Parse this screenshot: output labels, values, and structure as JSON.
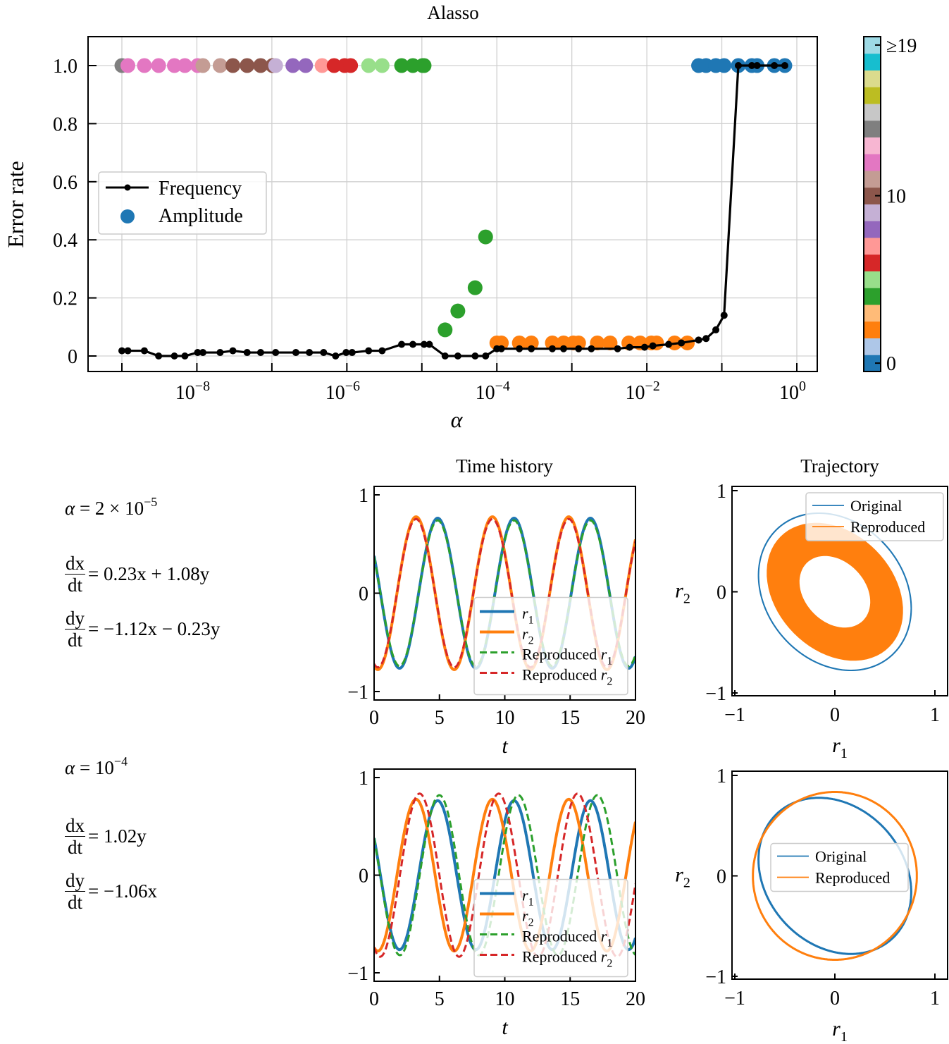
{
  "chart_data": [
    {
      "id": "error-rate",
      "type": "line+scatter",
      "title": "Alasso",
      "xlabel": "α",
      "ylabel": "Error rate",
      "xscale": "log",
      "xlim_log10": [
        -9.45,
        0.3
      ],
      "ylim": [
        -0.055,
        1.09
      ],
      "xticks": [
        {
          "exp": -8,
          "label": "10",
          "sup": "−8"
        },
        {
          "exp": -6,
          "label": "10",
          "sup": "−6"
        },
        {
          "exp": -4,
          "label": "10",
          "sup": "−4"
        },
        {
          "exp": -2,
          "label": "10",
          "sup": "−2"
        },
        {
          "exp": 0,
          "label": "10",
          "sup": "0"
        }
      ],
      "xgrid_decades": [
        -9,
        -8,
        -7,
        -6,
        -5,
        -4,
        -3,
        -2,
        -1,
        0
      ],
      "yticks": [
        0,
        0.2,
        0.4,
        0.6,
        0.8,
        1.0
      ],
      "ytick_labels": [
        "0",
        "0.2",
        "0.4",
        "0.6",
        "0.8",
        "1.0"
      ],
      "grid": true,
      "legend": {
        "placement": "center-left",
        "entries": [
          "Frequency",
          "Amplitude"
        ]
      },
      "frequency": {
        "color": "#000000",
        "log10_alpha": [
          -9.0,
          -8.92,
          -8.7,
          -8.51,
          -8.3,
          -8.16,
          -7.99,
          -7.92,
          -7.69,
          -7.52,
          -7.33,
          -7.15,
          -6.95,
          -6.68,
          -6.5,
          -6.31,
          -6.15,
          -6.01,
          -5.93,
          -5.71,
          -5.53,
          -5.27,
          -5.12,
          -4.97,
          -4.9,
          -4.69,
          -4.52,
          -4.29,
          -4.15,
          -4.0,
          -3.94,
          -3.7,
          -3.54,
          -3.26,
          -3.11,
          -2.91,
          -2.74,
          -2.39,
          -2.23,
          -2.03,
          -1.92,
          -1.71,
          -1.54,
          -1.31,
          -1.21,
          -1.08,
          -0.97,
          -0.78,
          -0.6,
          -0.53,
          -0.3,
          -0.16
        ],
        "values": [
          0.018,
          0.018,
          0.018,
          0.0,
          0.0,
          0.0,
          0.012,
          0.012,
          0.012,
          0.018,
          0.012,
          0.012,
          0.012,
          0.012,
          0.012,
          0.012,
          0.0,
          0.012,
          0.012,
          0.018,
          0.018,
          0.04,
          0.04,
          0.04,
          0.04,
          0.0,
          0.0,
          0.0,
          0.0,
          0.025,
          0.025,
          0.025,
          0.025,
          0.025,
          0.025,
          0.025,
          0.025,
          0.025,
          0.03,
          0.03,
          0.035,
          0.04,
          0.045,
          0.055,
          0.06,
          0.09,
          0.14,
          1.0,
          1.0,
          1.0,
          1.0,
          1.0
        ]
      },
      "amplitude": {
        "colorbar": {
          "colormap": "tab20",
          "colors": [
            "#1f77b4",
            "#aec7e8",
            "#ff7f0e",
            "#ffbb78",
            "#2ca02c",
            "#98df8a",
            "#d62728",
            "#ff9896",
            "#9467bd",
            "#c5b0d5",
            "#8c564b",
            "#c49c94",
            "#e377c2",
            "#f7b6d2",
            "#7f7f7f",
            "#c7c7c7",
            "#bcbd22",
            "#dbdb8d",
            "#17becf",
            "#9edae5"
          ],
          "ticks": [
            {
              "value": 0,
              "label": "0"
            },
            {
              "value": 10,
              "label": "10"
            },
            {
              "value": 19,
              "label": "≥19"
            }
          ]
        },
        "points": [
          {
            "log10_alpha": -9.0,
            "value": 1.0,
            "level": 14
          },
          {
            "log10_alpha": -8.92,
            "value": 1.0,
            "level": 12
          },
          {
            "log10_alpha": -8.7,
            "value": 1.0,
            "level": 12
          },
          {
            "log10_alpha": -8.51,
            "value": 1.0,
            "level": 12
          },
          {
            "log10_alpha": -8.3,
            "value": 1.0,
            "level": 12
          },
          {
            "log10_alpha": -8.16,
            "value": 1.0,
            "level": 12
          },
          {
            "log10_alpha": -7.99,
            "value": 1.0,
            "level": 12
          },
          {
            "log10_alpha": -7.92,
            "value": 1.0,
            "level": 11
          },
          {
            "log10_alpha": -7.69,
            "value": 1.0,
            "level": 11
          },
          {
            "log10_alpha": -7.52,
            "value": 1.0,
            "level": 10
          },
          {
            "log10_alpha": -7.33,
            "value": 1.0,
            "level": 10
          },
          {
            "log10_alpha": -7.15,
            "value": 1.0,
            "level": 10
          },
          {
            "log10_alpha": -6.99,
            "value": 1.0,
            "level": 10
          },
          {
            "log10_alpha": -6.95,
            "value": 1.0,
            "level": 9
          },
          {
            "log10_alpha": -6.72,
            "value": 1.0,
            "level": 8
          },
          {
            "log10_alpha": -6.55,
            "value": 1.0,
            "level": 8
          },
          {
            "log10_alpha": -6.33,
            "value": 1.0,
            "level": 7
          },
          {
            "log10_alpha": -6.17,
            "value": 1.0,
            "level": 6
          },
          {
            "log10_alpha": -6.03,
            "value": 1.0,
            "level": 6
          },
          {
            "log10_alpha": -5.95,
            "value": 1.0,
            "level": 6
          },
          {
            "log10_alpha": -5.71,
            "value": 1.0,
            "level": 5
          },
          {
            "log10_alpha": -5.53,
            "value": 1.0,
            "level": 5
          },
          {
            "log10_alpha": -5.27,
            "value": 1.0,
            "level": 4
          },
          {
            "log10_alpha": -5.12,
            "value": 1.0,
            "level": 4
          },
          {
            "log10_alpha": -4.99,
            "value": 1.0,
            "level": 4
          },
          {
            "log10_alpha": -4.97,
            "value": 1.0,
            "level": 4
          },
          {
            "log10_alpha": -4.69,
            "value": 0.09,
            "level": 4
          },
          {
            "log10_alpha": -4.52,
            "value": 0.155,
            "level": 4
          },
          {
            "log10_alpha": -4.29,
            "value": 0.235,
            "level": 4
          },
          {
            "log10_alpha": -4.15,
            "value": 0.41,
            "level": 4
          },
          {
            "log10_alpha": -4.0,
            "value": 0.045,
            "level": 2
          },
          {
            "log10_alpha": -3.94,
            "value": 0.045,
            "level": 2
          },
          {
            "log10_alpha": -3.7,
            "value": 0.045,
            "level": 2
          },
          {
            "log10_alpha": -3.54,
            "value": 0.045,
            "level": 2
          },
          {
            "log10_alpha": -3.26,
            "value": 0.045,
            "level": 2
          },
          {
            "log10_alpha": -3.11,
            "value": 0.045,
            "level": 2
          },
          {
            "log10_alpha": -2.98,
            "value": 0.045,
            "level": 2
          },
          {
            "log10_alpha": -2.91,
            "value": 0.045,
            "level": 2
          },
          {
            "log10_alpha": -2.66,
            "value": 0.045,
            "level": 2
          },
          {
            "log10_alpha": -2.49,
            "value": 0.045,
            "level": 2
          },
          {
            "log10_alpha": -2.24,
            "value": 0.045,
            "level": 2
          },
          {
            "log10_alpha": -2.09,
            "value": 0.045,
            "level": 2
          },
          {
            "log10_alpha": -1.94,
            "value": 0.045,
            "level": 2
          },
          {
            "log10_alpha": -1.87,
            "value": 0.045,
            "level": 2
          },
          {
            "log10_alpha": -1.63,
            "value": 0.045,
            "level": 2
          },
          {
            "log10_alpha": -1.46,
            "value": 0.045,
            "level": 2
          },
          {
            "log10_alpha": -1.31,
            "value": 1.0,
            "level": 0
          },
          {
            "log10_alpha": -1.21,
            "value": 1.0,
            "level": 0
          },
          {
            "log10_alpha": -1.08,
            "value": 1.0,
            "level": 0
          },
          {
            "log10_alpha": -0.97,
            "value": 1.0,
            "level": 0
          },
          {
            "log10_alpha": -0.78,
            "value": 1.0,
            "level": 0
          },
          {
            "log10_alpha": -0.6,
            "value": 1.0,
            "level": 0
          },
          {
            "log10_alpha": -0.53,
            "value": 1.0,
            "level": 0
          },
          {
            "log10_alpha": -0.3,
            "value": 1.0,
            "level": 0
          },
          {
            "log10_alpha": -0.16,
            "value": 1.0,
            "level": 0
          }
        ]
      }
    },
    {
      "id": "time-history-1",
      "type": "line",
      "title": "Time history",
      "xlabel": "t",
      "xlim": [
        0,
        20
      ],
      "ylim": [
        -1,
        1
      ],
      "xticks": [
        0,
        5,
        10,
        15,
        20
      ],
      "yticks": [
        -1,
        0,
        1
      ],
      "ytick_labels": [
        "−1",
        "0",
        "1"
      ],
      "legend": {
        "placement": "lower-right",
        "entries": [
          "r1",
          "r2",
          "Reproduced r1",
          "Reproduced r2"
        ]
      },
      "system_original": {
        "a": 0.23,
        "b": 1.08,
        "c": -1.12,
        "d": -0.23,
        "x0": 0.38,
        "y0": -0.74
      },
      "system_reproduced": {
        "a": 0.23,
        "b": 1.08,
        "c": -1.12,
        "d": -0.23,
        "x0": 0.38,
        "y0": -0.74,
        "amp_scale": 0.97
      }
    },
    {
      "id": "trajectory-1",
      "type": "line",
      "title": "Trajectory",
      "xlabel": "r1",
      "ylabel": "r2",
      "xlim": [
        -1,
        1
      ],
      "ylim": [
        -1,
        1
      ],
      "xticks": [
        -1,
        0,
        1
      ],
      "yticks": [
        -1,
        0,
        1
      ],
      "legend": {
        "placement": "upper-right",
        "entries": [
          "Original",
          "Reproduced"
        ]
      },
      "original": {
        "rx": 0.8,
        "ry": 0.6,
        "rotation_deg": -45,
        "cx": -0.02,
        "cy": 0.0
      },
      "reproduced_band": {
        "outer_rx": 0.77,
        "outer_ry": 0.58,
        "inner_rx": 0.4,
        "inner_ry": 0.3,
        "rotation_deg": -45
      }
    },
    {
      "id": "time-history-2",
      "type": "line",
      "xlabel": "t",
      "xlim": [
        0,
        20
      ],
      "ylim": [
        -1,
        1
      ],
      "xticks": [
        0,
        5,
        10,
        15,
        20
      ],
      "yticks": [
        -1,
        0,
        1
      ],
      "ytick_labels": [
        "−1",
        "0",
        "1"
      ],
      "legend": {
        "placement": "lower-right",
        "entries": [
          "r1",
          "r2",
          "Reproduced r1",
          "Reproduced r2"
        ]
      },
      "system_original": {
        "a": 0.23,
        "b": 1.08,
        "c": -1.12,
        "d": -0.23,
        "x0": 0.38,
        "y0": -0.74
      },
      "system_reproduced": {
        "a": 0.0,
        "b": 1.02,
        "c": -1.06,
        "d": 0.0,
        "x0": 0.38,
        "y0": -0.74
      }
    },
    {
      "id": "trajectory-2",
      "type": "line",
      "xlabel": "r1",
      "ylabel": "r2",
      "xlim": [
        -1,
        1
      ],
      "ylim": [
        -1,
        1
      ],
      "xticks": [
        -1,
        0,
        1
      ],
      "yticks": [
        -1,
        0,
        1
      ],
      "legend": {
        "placement": "center",
        "entries": [
          "Original",
          "Reproduced"
        ]
      }
    }
  ],
  "equations": [
    {
      "alpha_label": "α",
      "alpha_eq": "= 2 × 10",
      "alpha_sup": "−5",
      "dx_rhs": "= 0.23x + 1.08y",
      "dy_rhs": "= −1.12x − 0.23y"
    },
    {
      "alpha_label": "α",
      "alpha_eq": "= 10",
      "alpha_sup": "−4",
      "dx_rhs": "= 1.02y",
      "dy_rhs": "= −1.06x"
    }
  ],
  "fractions": {
    "dx": "dx",
    "dy": "dy",
    "dt": "dt"
  },
  "colors": {
    "blue": "#1f77b4",
    "orange": "#ff7f0e",
    "green": "#2ca02c",
    "red": "#d62728",
    "grid": "#d0d0d0"
  }
}
